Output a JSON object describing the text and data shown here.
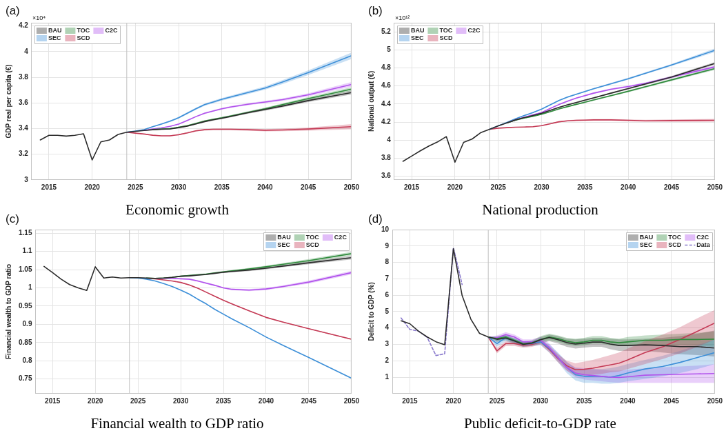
{
  "chart_data": [
    {
      "type": "line",
      "title": "Economic growth",
      "ylabel": "GDP real per capita (€)",
      "annotations": [
        "(a)",
        "×10⁴"
      ],
      "xlim": [
        2013,
        2050
      ],
      "xticks": [
        2015,
        2020,
        2025,
        2030,
        2035,
        2040,
        2045,
        2050
      ],
      "ylim": [
        3,
        4.225
      ],
      "yticks": [
        3,
        3.2,
        3.4,
        3.6,
        3.8,
        4,
        4.2
      ],
      "grid": true,
      "legend": "top left",
      "ref_lines": [
        {
          "axis": "x",
          "value": 2024,
          "color": "#c0c0c0"
        }
      ],
      "series": [
        {
          "name": "BAU",
          "color": "#2b2b2b",
          "x": [
            2014,
            2015,
            2016,
            2017,
            2018,
            2019,
            2020,
            2021,
            2022,
            2023,
            2024,
            2025,
            2026,
            2027,
            2028,
            2029,
            2030,
            2031,
            2032,
            2033,
            2034,
            2035,
            2036,
            2038,
            2040,
            2042,
            2045,
            2050
          ],
          "values": [
            3.311,
            3.347,
            3.347,
            3.341,
            3.347,
            3.359,
            3.155,
            3.296,
            3.311,
            3.354,
            3.371,
            3.378,
            3.385,
            3.391,
            3.394,
            3.397,
            3.407,
            3.419,
            3.436,
            3.454,
            3.468,
            3.48,
            3.494,
            3.523,
            3.549,
            3.575,
            3.618,
            3.681
          ],
          "lower": [
            null,
            null,
            null,
            null,
            null,
            null,
            null,
            null,
            null,
            null,
            3.371,
            3.377,
            3.383,
            3.388,
            3.391,
            3.393,
            3.403,
            3.414,
            3.431,
            3.448,
            3.462,
            3.473,
            3.487,
            3.515,
            3.54,
            3.565,
            3.606,
            3.666
          ],
          "upper": [
            null,
            null,
            null,
            null,
            null,
            null,
            null,
            null,
            null,
            null,
            3.371,
            3.379,
            3.387,
            3.394,
            3.397,
            3.401,
            3.411,
            3.424,
            3.441,
            3.46,
            3.474,
            3.487,
            3.501,
            3.531,
            3.558,
            3.585,
            3.63,
            3.696
          ]
        },
        {
          "name": "TOC",
          "color": "#2f8a3c",
          "x": [
            2027,
            2028,
            2029,
            2030,
            2031,
            2032,
            2033,
            2034,
            2035,
            2036,
            2038,
            2040,
            2042,
            2045,
            2050
          ],
          "values": [
            3.392,
            3.396,
            3.399,
            3.41,
            3.422,
            3.44,
            3.458,
            3.472,
            3.484,
            3.498,
            3.526,
            3.554,
            3.586,
            3.633,
            3.707
          ],
          "lower": [
            3.389,
            3.393,
            3.395,
            3.406,
            3.417,
            3.435,
            3.452,
            3.466,
            3.477,
            3.491,
            3.518,
            3.545,
            3.576,
            3.621,
            3.692
          ],
          "upper": [
            3.395,
            3.399,
            3.403,
            3.414,
            3.427,
            3.445,
            3.464,
            3.478,
            3.491,
            3.505,
            3.534,
            3.563,
            3.596,
            3.645,
            3.722
          ]
        },
        {
          "name": "C2C",
          "color": "#b152ec",
          "x": [
            2026,
            2027,
            2028,
            2029,
            2030,
            2031,
            2032,
            2033,
            2034,
            2035,
            2036,
            2038,
            2040,
            2042,
            2045,
            2050
          ],
          "values": [
            3.385,
            3.396,
            3.405,
            3.417,
            3.435,
            3.463,
            3.493,
            3.519,
            3.537,
            3.554,
            3.568,
            3.589,
            3.607,
            3.625,
            3.663,
            3.744
          ],
          "lower": [
            3.383,
            3.393,
            3.402,
            3.413,
            3.431,
            3.458,
            3.488,
            3.513,
            3.531,
            3.547,
            3.561,
            3.581,
            3.598,
            3.615,
            3.651,
            3.726
          ],
          "upper": [
            3.387,
            3.399,
            3.408,
            3.421,
            3.439,
            3.468,
            3.498,
            3.525,
            3.543,
            3.561,
            3.575,
            3.597,
            3.616,
            3.635,
            3.675,
            3.762
          ]
        },
        {
          "name": "SEC",
          "color": "#3d8fd8",
          "x": [
            2024,
            2025,
            2026,
            2027,
            2028,
            2029,
            2030,
            2031,
            2032,
            2033,
            2034,
            2035,
            2036,
            2038,
            2040,
            2042,
            2045,
            2050
          ],
          "values": [
            3.371,
            3.38,
            3.391,
            3.414,
            3.435,
            3.457,
            3.484,
            3.519,
            3.554,
            3.586,
            3.607,
            3.628,
            3.646,
            3.681,
            3.716,
            3.762,
            3.836,
            3.968
          ],
          "lower": [
            3.371,
            3.378,
            3.388,
            3.41,
            3.43,
            3.451,
            3.477,
            3.511,
            3.546,
            3.577,
            3.597,
            3.618,
            3.635,
            3.669,
            3.703,
            3.747,
            3.818,
            3.943
          ],
          "upper": [
            3.371,
            3.382,
            3.394,
            3.418,
            3.44,
            3.463,
            3.491,
            3.527,
            3.562,
            3.595,
            3.617,
            3.638,
            3.657,
            3.693,
            3.729,
            3.777,
            3.854,
            3.993
          ]
        },
        {
          "name": "SCD",
          "color": "#c43a55",
          "x": [
            2024,
            2025,
            2026,
            2027,
            2028,
            2029,
            2030,
            2031,
            2032,
            2033,
            2034,
            2035,
            2036,
            2038,
            2040,
            2042,
            2045,
            2050
          ],
          "values": [
            3.371,
            3.364,
            3.357,
            3.348,
            3.343,
            3.343,
            3.352,
            3.366,
            3.382,
            3.391,
            3.394,
            3.394,
            3.394,
            3.391,
            3.387,
            3.389,
            3.396,
            3.414
          ],
          "lower": [
            3.371,
            3.363,
            3.355,
            3.345,
            3.34,
            3.339,
            3.348,
            3.361,
            3.377,
            3.385,
            3.388,
            3.387,
            3.387,
            3.383,
            3.378,
            3.379,
            3.384,
            3.394
          ],
          "upper": [
            3.371,
            3.365,
            3.359,
            3.351,
            3.346,
            3.347,
            3.356,
            3.371,
            3.387,
            3.397,
            3.4,
            3.401,
            3.401,
            3.399,
            3.396,
            3.399,
            3.408,
            3.434
          ]
        }
      ]
    },
    {
      "type": "line",
      "title": "National production",
      "ylabel": "National output (€)",
      "annotations": [
        "(b)",
        "×10¹²"
      ],
      "xlim": [
        2013,
        2050
      ],
      "xticks": [
        2015,
        2020,
        2025,
        2030,
        2035,
        2040,
        2045,
        2050
      ],
      "ylim": [
        3.56,
        5.3
      ],
      "yticks": [
        3.6,
        3.8,
        4,
        4.2,
        4.4,
        4.6,
        4.8,
        5,
        5.2
      ],
      "grid": true,
      "legend": "top left",
      "ref_lines": [
        {
          "axis": "x",
          "value": 2024,
          "color": "#c0c0c0"
        }
      ],
      "series": [
        {
          "name": "BAU",
          "color": "#2b2b2b",
          "x": [
            2014,
            2015,
            2016,
            2017,
            2018,
            2019,
            2020,
            2021,
            2022,
            2023,
            2024,
            2025,
            2026,
            2027,
            2028,
            2029,
            2030,
            2031,
            2032,
            2033,
            2034,
            2035,
            2036,
            2038,
            2040,
            2042,
            2045,
            2050
          ],
          "values": [
            3.765,
            3.823,
            3.881,
            3.935,
            3.98,
            4.039,
            3.755,
            3.975,
            4.013,
            4.084,
            4.12,
            4.158,
            4.191,
            4.224,
            4.249,
            4.272,
            4.297,
            4.33,
            4.363,
            4.391,
            4.416,
            4.442,
            4.467,
            4.52,
            4.571,
            4.622,
            4.698,
            4.85
          ],
          "lower": [
            null,
            null,
            null,
            null,
            null,
            null,
            null,
            null,
            null,
            null,
            4.12,
            4.156,
            4.188,
            4.22,
            4.245,
            4.267,
            4.292,
            4.324,
            4.357,
            4.384,
            4.409,
            4.434,
            4.459,
            4.511,
            4.561,
            4.611,
            4.686,
            4.835
          ],
          "upper": [
            null,
            null,
            null,
            null,
            null,
            null,
            null,
            null,
            null,
            null,
            4.12,
            4.16,
            4.194,
            4.228,
            4.253,
            4.277,
            4.302,
            4.336,
            4.369,
            4.398,
            4.423,
            4.45,
            4.475,
            4.529,
            4.581,
            4.633,
            4.71,
            4.865
          ]
        },
        {
          "name": "TOC",
          "color": "#2f8a3c",
          "x": [
            2026,
            2027,
            2028,
            2029,
            2030,
            2031,
            2032,
            2033,
            2034,
            2035,
            2036,
            2038,
            2040,
            2042,
            2045,
            2050
          ],
          "values": [
            4.191,
            4.221,
            4.244,
            4.264,
            4.287,
            4.315,
            4.345,
            4.371,
            4.396,
            4.419,
            4.444,
            4.492,
            4.541,
            4.591,
            4.667,
            4.792
          ],
          "lower": [
            4.188,
            4.217,
            4.24,
            4.259,
            4.282,
            4.309,
            4.339,
            4.364,
            4.389,
            4.411,
            4.436,
            4.483,
            4.531,
            4.58,
            4.655,
            4.777
          ],
          "upper": [
            4.194,
            4.225,
            4.248,
            4.269,
            4.292,
            4.321,
            4.351,
            4.378,
            4.403,
            4.427,
            4.452,
            4.501,
            4.551,
            4.602,
            4.679,
            4.807
          ]
        },
        {
          "name": "C2C",
          "color": "#b152ec",
          "x": [
            2026,
            2027,
            2028,
            2029,
            2030,
            2031,
            2032,
            2033,
            2034,
            2035,
            2036,
            2038,
            2040,
            2042,
            2045,
            2050
          ],
          "values": [
            4.191,
            4.224,
            4.254,
            4.28,
            4.305,
            4.351,
            4.394,
            4.432,
            4.465,
            4.493,
            4.52,
            4.563,
            4.594,
            4.629,
            4.698,
            4.812
          ],
          "lower": [
            4.188,
            4.22,
            4.25,
            4.275,
            4.3,
            4.345,
            4.388,
            4.425,
            4.458,
            4.485,
            4.512,
            4.554,
            4.584,
            4.618,
            4.686,
            4.797
          ],
          "upper": [
            4.194,
            4.228,
            4.258,
            4.285,
            4.31,
            4.357,
            4.4,
            4.439,
            4.472,
            4.501,
            4.528,
            4.572,
            4.604,
            4.64,
            4.71,
            4.827
          ]
        },
        {
          "name": "SEC",
          "color": "#3d8fd8",
          "x": [
            2024,
            2025,
            2026,
            2027,
            2028,
            2029,
            2030,
            2031,
            2032,
            2033,
            2034,
            2035,
            2036,
            2038,
            2040,
            2042,
            2045,
            2050
          ],
          "values": [
            4.12,
            4.158,
            4.196,
            4.236,
            4.272,
            4.305,
            4.343,
            4.391,
            4.439,
            4.477,
            4.508,
            4.538,
            4.569,
            4.624,
            4.68,
            4.741,
            4.832,
            4.995
          ],
          "lower": [
            4.12,
            4.156,
            4.193,
            4.232,
            4.268,
            4.3,
            4.338,
            4.385,
            4.433,
            4.47,
            4.501,
            4.53,
            4.561,
            4.615,
            4.67,
            4.73,
            4.82,
            4.975
          ],
          "upper": [
            4.12,
            4.16,
            4.199,
            4.24,
            4.276,
            4.31,
            4.348,
            4.397,
            4.445,
            4.484,
            4.515,
            4.546,
            4.577,
            4.633,
            4.69,
            4.752,
            4.844,
            5.015
          ]
        },
        {
          "name": "SCD",
          "color": "#c43a55",
          "x": [
            2024,
            2025,
            2026,
            2027,
            2028,
            2029,
            2030,
            2031,
            2032,
            2033,
            2034,
            2035,
            2036,
            2038,
            2040,
            2042,
            2045,
            2050
          ],
          "values": [
            4.12,
            4.132,
            4.138,
            4.143,
            4.145,
            4.148,
            4.16,
            4.181,
            4.203,
            4.214,
            4.219,
            4.221,
            4.224,
            4.224,
            4.219,
            4.214,
            4.216,
            4.219
          ],
          "lower": [
            4.12,
            4.13,
            4.135,
            4.139,
            4.141,
            4.143,
            4.155,
            4.175,
            4.197,
            4.207,
            4.212,
            4.213,
            4.216,
            4.215,
            4.209,
            4.203,
            4.204,
            4.204
          ],
          "upper": [
            4.12,
            4.134,
            4.141,
            4.147,
            4.149,
            4.153,
            4.165,
            4.187,
            4.209,
            4.221,
            4.226,
            4.229,
            4.232,
            4.233,
            4.229,
            4.225,
            4.228,
            4.234
          ]
        }
      ]
    },
    {
      "type": "line",
      "title": "Financial wealth to GDP ratio",
      "ylabel": "Financial wealth to GDP ratio",
      "annotations": [
        "(c)"
      ],
      "xlim": [
        2013,
        2050
      ],
      "xticks": [
        2015,
        2020,
        2025,
        2030,
        2035,
        2040,
        2045,
        2050
      ],
      "ylim": [
        0.71,
        1.16
      ],
      "yticks": [
        0.75,
        0.8,
        0.85,
        0.9,
        0.95,
        1,
        1.05,
        1.1,
        1.15
      ],
      "grid": true,
      "legend": "top right",
      "ref_lines": [
        {
          "axis": "x",
          "value": 2024,
          "color": "#c0c0c0"
        }
      ],
      "series": [
        {
          "name": "BAU",
          "color": "#2b2b2b",
          "x": [
            2014,
            2015,
            2016,
            2017,
            2018,
            2019,
            2020,
            2021,
            2022,
            2023,
            2024,
            2025,
            2026,
            2027,
            2028,
            2029,
            2030,
            2031,
            2032,
            2033,
            2034,
            2035,
            2036,
            2038,
            2040,
            2042,
            2045,
            2050
          ],
          "values": [
            1.059,
            1.042,
            1.024,
            1.009,
            1.0,
            0.993,
            1.058,
            1.027,
            1.03,
            1.027,
            1.028,
            1.028,
            1.027,
            1.026,
            1.027,
            1.029,
            1.032,
            1.033,
            1.035,
            1.037,
            1.04,
            1.043,
            1.045,
            1.049,
            1.054,
            1.06,
            1.069,
            1.083
          ],
          "lower": [
            null,
            null,
            null,
            null,
            null,
            null,
            null,
            null,
            null,
            null,
            1.028,
            1.027,
            1.026,
            1.025,
            1.026,
            1.028,
            1.031,
            1.031,
            1.033,
            1.035,
            1.038,
            1.041,
            1.043,
            1.046,
            1.051,
            1.057,
            1.065,
            1.078
          ],
          "upper": [
            null,
            null,
            null,
            null,
            null,
            null,
            null,
            null,
            null,
            null,
            1.028,
            1.029,
            1.028,
            1.027,
            1.028,
            1.03,
            1.033,
            1.035,
            1.037,
            1.039,
            1.042,
            1.045,
            1.047,
            1.052,
            1.057,
            1.063,
            1.073,
            1.088
          ]
        },
        {
          "name": "TOC",
          "color": "#2f8a3c",
          "x": [
            2026,
            2027,
            2028,
            2029,
            2030,
            2031,
            2032,
            2033,
            2034,
            2035,
            2036,
            2038,
            2040,
            2042,
            2045,
            2050
          ],
          "values": [
            1.027,
            1.026,
            1.027,
            1.029,
            1.032,
            1.034,
            1.036,
            1.038,
            1.041,
            1.044,
            1.047,
            1.052,
            1.058,
            1.065,
            1.075,
            1.094
          ],
          "lower": [
            1.026,
            1.025,
            1.026,
            1.028,
            1.031,
            1.032,
            1.034,
            1.036,
            1.039,
            1.042,
            1.045,
            1.049,
            1.055,
            1.062,
            1.071,
            1.089
          ],
          "upper": [
            1.028,
            1.027,
            1.028,
            1.03,
            1.033,
            1.036,
            1.038,
            1.04,
            1.043,
            1.046,
            1.049,
            1.055,
            1.061,
            1.068,
            1.079,
            1.099
          ]
        },
        {
          "name": "C2C",
          "color": "#b152ec",
          "x": [
            2027,
            2028,
            2029,
            2030,
            2031,
            2032,
            2033,
            2034,
            2035,
            2036,
            2038,
            2040,
            2042,
            2045,
            2050
          ],
          "values": [
            1.026,
            1.026,
            1.026,
            1.025,
            1.024,
            1.019,
            1.013,
            1.007,
            1.0,
            0.996,
            0.994,
            0.997,
            1.004,
            1.016,
            1.042
          ],
          "lower": [
            1.025,
            1.025,
            1.025,
            1.024,
            1.022,
            1.017,
            1.011,
            1.005,
            0.998,
            0.994,
            0.991,
            0.994,
            1.001,
            1.012,
            1.037
          ],
          "upper": [
            1.027,
            1.027,
            1.027,
            1.026,
            1.026,
            1.021,
            1.015,
            1.009,
            1.002,
            0.998,
            0.997,
            1.0,
            1.007,
            1.02,
            1.047
          ]
        },
        {
          "name": "SEC",
          "color": "#3d8fd8",
          "x": [
            2024,
            2025,
            2026,
            2027,
            2028,
            2029,
            2030,
            2031,
            2032,
            2033,
            2034,
            2035,
            2036,
            2038,
            2040,
            2042,
            2045,
            2050
          ],
          "values": [
            1.028,
            1.027,
            1.024,
            1.019,
            1.012,
            1.004,
            0.994,
            0.983,
            0.969,
            0.956,
            0.941,
            0.928,
            0.915,
            0.891,
            0.865,
            0.842,
            0.809,
            0.752
          ],
          "lower": [
            1.028,
            1.027,
            1.024,
            1.019,
            1.012,
            1.004,
            0.993,
            0.982,
            0.968,
            0.955,
            0.94,
            0.927,
            0.914,
            0.89,
            0.864,
            0.841,
            0.808,
            0.75
          ],
          "upper": [
            1.028,
            1.027,
            1.024,
            1.019,
            1.012,
            1.004,
            0.995,
            0.984,
            0.97,
            0.957,
            0.942,
            0.929,
            0.916,
            0.892,
            0.866,
            0.843,
            0.81,
            0.754
          ]
        },
        {
          "name": "SCD",
          "color": "#c43a55",
          "x": [
            2026,
            2027,
            2028,
            2029,
            2030,
            2031,
            2032,
            2033,
            2034,
            2035,
            2036,
            2038,
            2040,
            2042,
            2045,
            2050
          ],
          "values": [
            1.026,
            1.025,
            1.022,
            1.019,
            1.015,
            1.008,
            0.999,
            0.988,
            0.977,
            0.966,
            0.956,
            0.937,
            0.919,
            0.906,
            0.888,
            0.859
          ],
          "lower": [
            1.026,
            1.025,
            1.022,
            1.019,
            1.014,
            1.007,
            0.998,
            0.987,
            0.976,
            0.965,
            0.955,
            0.936,
            0.918,
            0.905,
            0.887,
            0.857
          ],
          "upper": [
            1.026,
            1.025,
            1.022,
            1.019,
            1.016,
            1.009,
            1.0,
            0.989,
            0.978,
            0.967,
            0.957,
            0.938,
            0.92,
            0.907,
            0.889,
            0.861
          ]
        }
      ]
    },
    {
      "type": "line",
      "title": "Public deficit-to-GDP rate",
      "ylabel": "Deficit to GDP (%)",
      "annotations": [
        "(d)"
      ],
      "xlim": [
        2013,
        2050
      ],
      "xticks": [
        2015,
        2020,
        2025,
        2030,
        2035,
        2040,
        2045,
        2050
      ],
      "ylim": [
        0,
        10
      ],
      "yticks": [
        1,
        2,
        3,
        4,
        5,
        6,
        7,
        8,
        9,
        10
      ],
      "grid": true,
      "legend": "top right",
      "ref_lines": [
        {
          "axis": "x",
          "value": 2024,
          "color": "#c0c0c0"
        }
      ],
      "series": [
        {
          "name": "BAU",
          "color": "#2b2b2b",
          "x": [
            2014,
            2015,
            2016,
            2017,
            2018,
            2019,
            2020,
            2021,
            2022,
            2023,
            2024,
            2025,
            2026,
            2027,
            2028,
            2029,
            2030,
            2031,
            2032,
            2033,
            2034,
            2035,
            2036,
            2037,
            2038,
            2039,
            2040,
            2042,
            2044,
            2046,
            2048,
            2050
          ],
          "values": [
            4.44,
            4.26,
            3.8,
            3.45,
            3.16,
            2.98,
            8.83,
            5.98,
            4.54,
            3.67,
            3.45,
            3.31,
            3.39,
            3.21,
            3.0,
            3.07,
            3.28,
            3.42,
            3.28,
            3.11,
            3.02,
            3.07,
            3.14,
            3.14,
            3.02,
            2.93,
            2.93,
            2.97,
            2.93,
            2.86,
            2.86,
            2.78
          ],
          "lower": [
            null,
            null,
            null,
            null,
            null,
            null,
            null,
            null,
            null,
            null,
            3.45,
            3.15,
            3.25,
            3.05,
            2.85,
            2.9,
            3.05,
            3.2,
            3.05,
            2.85,
            2.75,
            2.8,
            2.85,
            2.85,
            2.7,
            2.6,
            2.6,
            2.6,
            2.5,
            2.4,
            2.35,
            2.25
          ],
          "upper": [
            null,
            null,
            null,
            null,
            null,
            null,
            null,
            null,
            null,
            null,
            3.45,
            3.45,
            3.55,
            3.35,
            3.15,
            3.2,
            3.45,
            3.6,
            3.5,
            3.35,
            3.3,
            3.35,
            3.4,
            3.4,
            3.35,
            3.3,
            3.3,
            3.35,
            3.4,
            3.5,
            3.65,
            3.85
          ]
        },
        {
          "name": "TOC",
          "color": "#2f8a3c",
          "x": [
            2024,
            2025,
            2026,
            2027,
            2028,
            2029,
            2030,
            2031,
            2032,
            2033,
            2034,
            2035,
            2036,
            2037,
            2038,
            2039,
            2040,
            2042,
            2044,
            2046,
            2048,
            2050
          ],
          "values": [
            3.45,
            3.35,
            3.45,
            3.25,
            3.05,
            3.1,
            3.3,
            3.45,
            3.35,
            3.2,
            3.1,
            3.15,
            3.25,
            3.25,
            3.15,
            3.1,
            3.15,
            3.25,
            3.25,
            3.3,
            3.3,
            3.32
          ],
          "lower": [
            3.45,
            3.2,
            3.3,
            3.1,
            2.9,
            2.95,
            3.15,
            3.25,
            3.15,
            3.0,
            2.9,
            2.95,
            3.05,
            3.05,
            2.95,
            2.9,
            2.95,
            3.0,
            2.95,
            2.95,
            2.9,
            2.85
          ],
          "upper": [
            3.45,
            3.5,
            3.6,
            3.4,
            3.2,
            3.25,
            3.5,
            3.65,
            3.55,
            3.4,
            3.35,
            3.4,
            3.5,
            3.5,
            3.4,
            3.35,
            3.45,
            3.55,
            3.6,
            3.65,
            3.7,
            3.8
          ]
        },
        {
          "name": "C2C",
          "color": "#b152ec",
          "x": [
            2024,
            2025,
            2026,
            2027,
            2028,
            2029,
            2030,
            2031,
            2032,
            2033,
            2034,
            2035,
            2036,
            2037,
            2038,
            2039,
            2040,
            2042,
            2044,
            2046,
            2048,
            2050
          ],
          "values": [
            3.45,
            3.4,
            3.6,
            3.45,
            3.15,
            3.15,
            3.25,
            2.8,
            2.2,
            1.6,
            1.25,
            1.15,
            1.1,
            1.05,
            1.0,
            0.98,
            1.02,
            1.12,
            1.15,
            1.18,
            1.2,
            1.22
          ],
          "lower": [
            3.45,
            3.25,
            3.45,
            3.3,
            3.0,
            3.0,
            3.1,
            2.6,
            2.0,
            1.4,
            1.0,
            0.85,
            0.8,
            0.75,
            0.7,
            0.65,
            0.65,
            0.65,
            0.65,
            0.65,
            0.65,
            0.65
          ],
          "upper": [
            3.45,
            3.55,
            3.75,
            3.6,
            3.3,
            3.3,
            3.45,
            3.05,
            2.45,
            1.9,
            1.6,
            1.55,
            1.5,
            1.45,
            1.4,
            1.4,
            1.45,
            1.55,
            1.6,
            1.65,
            1.7,
            1.8
          ]
        },
        {
          "name": "SEC",
          "color": "#3d8fd8",
          "x": [
            2024,
            2025,
            2026,
            2027,
            2028,
            2029,
            2030,
            2031,
            2032,
            2033,
            2034,
            2035,
            2036,
            2037,
            2038,
            2039,
            2040,
            2042,
            2044,
            2046,
            2048,
            2050
          ],
          "values": [
            3.45,
            3.05,
            3.4,
            3.2,
            3.0,
            3.05,
            3.15,
            2.75,
            2.2,
            1.6,
            1.15,
            1.05,
            1.05,
            1.05,
            1.0,
            1.1,
            1.25,
            1.5,
            1.65,
            1.9,
            2.2,
            2.5
          ],
          "lower": [
            3.45,
            2.85,
            3.2,
            3.0,
            2.85,
            2.9,
            2.95,
            2.5,
            1.9,
            1.25,
            0.8,
            0.65,
            0.65,
            0.6,
            0.6,
            0.65,
            0.75,
            0.9,
            1.05,
            1.25,
            1.5,
            1.8
          ],
          "upper": [
            3.45,
            3.3,
            3.55,
            3.35,
            3.15,
            3.2,
            3.3,
            3.0,
            2.5,
            1.95,
            1.55,
            1.5,
            1.5,
            1.5,
            1.55,
            1.65,
            1.8,
            2.05,
            2.3,
            2.6,
            2.95,
            3.3
          ]
        },
        {
          "name": "SCD",
          "color": "#c43a55",
          "x": [
            2024,
            2025,
            2026,
            2027,
            2028,
            2029,
            2030,
            2031,
            2032,
            2033,
            2034,
            2035,
            2036,
            2037,
            2038,
            2039,
            2040,
            2042,
            2044,
            2046,
            2048,
            2050
          ],
          "values": [
            3.45,
            2.6,
            3.05,
            3.05,
            2.95,
            3.0,
            3.15,
            2.7,
            2.15,
            1.7,
            1.45,
            1.48,
            1.55,
            1.65,
            1.75,
            1.85,
            2.05,
            2.5,
            2.85,
            3.3,
            3.8,
            4.3
          ],
          "lower": [
            3.45,
            2.45,
            2.9,
            2.9,
            2.8,
            2.85,
            3.0,
            2.5,
            1.9,
            1.4,
            1.1,
            1.1,
            1.15,
            1.2,
            1.3,
            1.35,
            1.5,
            1.8,
            2.1,
            2.45,
            2.85,
            3.3
          ],
          "upper": [
            3.45,
            2.8,
            3.2,
            3.2,
            3.1,
            3.15,
            3.3,
            2.9,
            2.4,
            2.0,
            1.85,
            1.95,
            2.05,
            2.2,
            2.35,
            2.5,
            2.75,
            3.2,
            3.6,
            4.05,
            4.6,
            5.1
          ]
        },
        {
          "name": "Data",
          "color": "#8878cc",
          "line_style": "dashed",
          "x": [
            2014,
            2015,
            2016,
            2017,
            2018,
            2019,
            2020,
            2021
          ],
          "values": [
            4.61,
            3.91,
            3.81,
            3.42,
            2.32,
            2.43,
            8.9,
            6.65
          ]
        }
      ]
    }
  ]
}
